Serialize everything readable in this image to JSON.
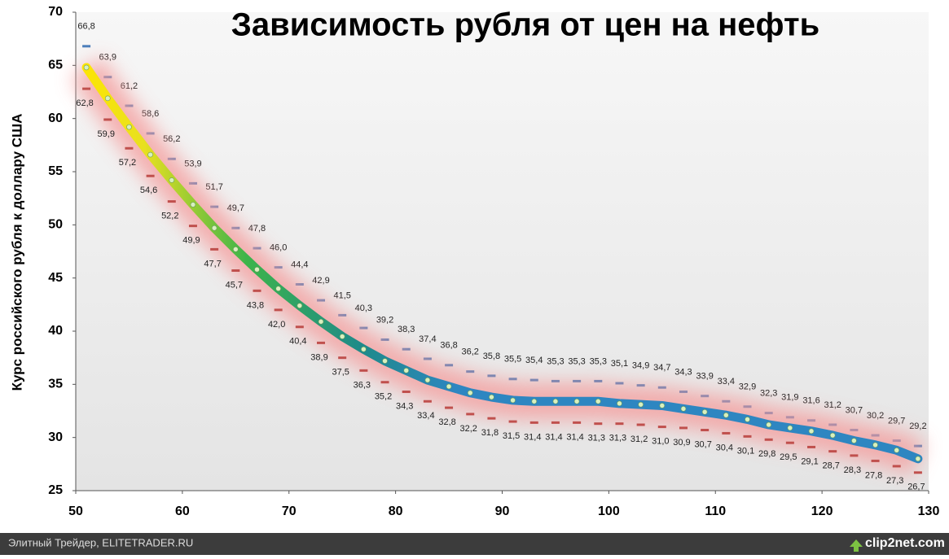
{
  "chart_data": {
    "type": "line",
    "title": "Зависимость рубля от цен на нефть",
    "y_label": "Курс российского рубля к доллару США",
    "x": [
      51,
      53,
      55,
      57,
      59,
      61,
      63,
      65,
      67,
      69,
      71,
      73,
      75,
      77,
      79,
      81,
      83,
      85,
      87,
      89,
      91,
      93,
      95,
      97,
      99,
      101,
      103,
      105,
      107,
      109,
      111,
      113,
      115,
      117,
      119,
      121,
      123,
      125,
      127,
      129
    ],
    "series": [
      {
        "role": "upper",
        "color": "#4a7ebb",
        "values": [
          66.8,
          63.9,
          61.2,
          58.6,
          56.2,
          53.9,
          51.7,
          49.7,
          47.8,
          46.0,
          44.4,
          42.9,
          41.5,
          40.3,
          39.2,
          38.3,
          37.4,
          36.8,
          36.2,
          35.8,
          35.5,
          35.4,
          35.3,
          35.3,
          35.3,
          35.1,
          34.9,
          34.7,
          34.3,
          33.9,
          33.4,
          32.9,
          32.3,
          31.9,
          31.6,
          31.2,
          30.7,
          30.2,
          29.7,
          29.2
        ],
        "value_labels": [
          "66,8",
          "63,9",
          "61,2",
          "58,6",
          "56,2",
          "53,9",
          "51,7",
          "49,7",
          "47,8",
          "46,0",
          "44,4",
          "42,9",
          "41,5",
          "40,3",
          "39,2",
          "38,3",
          "37,4",
          "36,8",
          "36,2",
          "35,8",
          "35,5",
          "35,4",
          "35,3",
          "35,3",
          "35,3",
          "35,1",
          "34,9",
          "34,7",
          "34,3",
          "33,9",
          "33,4",
          "32,9",
          "32,3",
          "31,9",
          "31,6",
          "31,2",
          "30,7",
          "30,2",
          "29,7",
          "29,2"
        ]
      },
      {
        "role": "center",
        "color": "#2e86c1",
        "values": [
          64.8,
          61.9,
          59.2,
          56.6,
          54.2,
          51.9,
          49.7,
          47.7,
          45.8,
          44.0,
          42.4,
          40.9,
          39.5,
          38.3,
          37.2,
          36.3,
          35.4,
          34.8,
          34.2,
          33.8,
          33.5,
          33.4,
          33.4,
          33.4,
          33.4,
          33.2,
          33.1,
          33.0,
          32.7,
          32.4,
          32.1,
          31.7,
          31.2,
          30.9,
          30.6,
          30.2,
          29.7,
          29.3,
          28.8,
          28.0
        ]
      },
      {
        "role": "lower",
        "color": "#c0504d",
        "values": [
          62.8,
          59.9,
          57.2,
          54.6,
          52.2,
          49.9,
          47.7,
          45.7,
          43.8,
          42.0,
          40.4,
          38.9,
          37.5,
          36.3,
          35.2,
          34.3,
          33.4,
          32.8,
          32.2,
          31.8,
          31.5,
          31.4,
          31.4,
          31.4,
          31.3,
          31.3,
          31.2,
          31.0,
          30.9,
          30.7,
          30.4,
          30.1,
          29.8,
          29.5,
          29.1,
          28.7,
          28.3,
          27.8,
          27.3,
          26.7
        ],
        "value_labels": [
          "62,8",
          "59,9",
          "57,2",
          "54,6",
          "52,2",
          "49,9",
          "47,7",
          "45,7",
          "43,8",
          "42,0",
          "40,4",
          "38,9",
          "37,5",
          "36,3",
          "35,2",
          "34,3",
          "33,4",
          "32,8",
          "32,2",
          "31,8",
          "31,5",
          "31,4",
          "31,4",
          "31,4",
          "31,3",
          "31,3",
          "31,2",
          "31,0",
          "30,9",
          "30,7",
          "30,4",
          "30,1",
          "29,8",
          "29,5",
          "29,1",
          "28,7",
          "28,3",
          "27,8",
          "27,3",
          "26,7"
        ]
      }
    ],
    "xlim": [
      50,
      130
    ],
    "xticks": [
      50,
      60,
      70,
      80,
      90,
      100,
      110,
      120,
      130
    ],
    "ylim": [
      25,
      70
    ],
    "yticks": [
      25,
      30,
      35,
      40,
      45,
      50,
      55,
      60,
      65,
      70
    ]
  },
  "footer": {
    "left": "Элитный Трейдер, ELITETRADER.RU",
    "right": "clip2net.com"
  }
}
